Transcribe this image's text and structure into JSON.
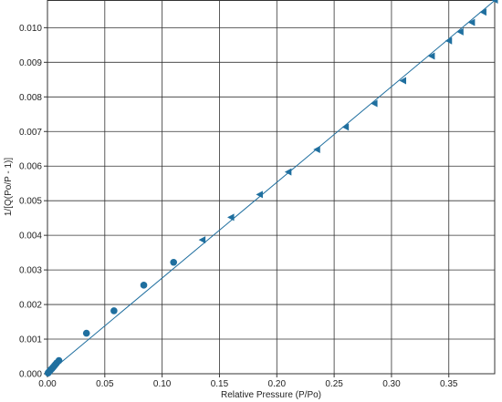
{
  "chart_data": {
    "type": "scatter",
    "title": "",
    "xlabel": "Relative Pressure (P/Po)",
    "ylabel": "1/[Q(Po/P - 1)]",
    "xlim": [
      0,
      0.39
    ],
    "ylim": [
      0,
      0.0108
    ],
    "x_ticks": [
      0,
      0.05,
      0.1,
      0.15,
      0.2,
      0.25,
      0.3,
      0.35
    ],
    "x_tick_labels": [
      "0.00",
      "0.05",
      "0.10",
      "0.15",
      "0.20",
      "0.25",
      "0.30",
      "0.35"
    ],
    "y_ticks": [
      0,
      0.001,
      0.002,
      0.003,
      0.004,
      0.005,
      0.006,
      0.007,
      0.008,
      0.009,
      0.01
    ],
    "y_tick_labels": [
      "0.000",
      "0.001",
      "0.002",
      "0.003",
      "0.004",
      "0.005",
      "0.006",
      "0.007",
      "0.008",
      "0.009",
      "0.010"
    ],
    "grid": true,
    "color": "#1f6f9f",
    "series": [
      {
        "marker": "circle",
        "x": [
          0.0005,
          0.001,
          0.002,
          0.003,
          0.004,
          0.005,
          0.006,
          0.007,
          0.008,
          0.01,
          0.034,
          0.058,
          0.084,
          0.11
        ],
        "y": [
          2e-05,
          4e-05,
          8e-05,
          0.00012,
          0.00015,
          0.00019,
          0.00023,
          0.00027,
          0.00031,
          0.00038,
          0.00117,
          0.00182,
          0.00256,
          0.00322
        ]
      },
      {
        "marker": "triangle-left",
        "x": [
          0.135,
          0.16,
          0.185,
          0.21,
          0.235,
          0.26,
          0.285,
          0.31,
          0.335,
          0.35,
          0.36,
          0.37,
          0.38,
          0.39
        ],
        "y": [
          0.00387,
          0.00452,
          0.00518,
          0.00583,
          0.00648,
          0.00713,
          0.00781,
          0.00847,
          0.00918,
          0.00962,
          0.00988,
          0.01015,
          0.01045,
          0.0108
        ]
      },
      {
        "type": "line",
        "x": [
          0,
          0.3905
        ],
        "y": [
          0,
          0.0108
        ]
      }
    ]
  }
}
